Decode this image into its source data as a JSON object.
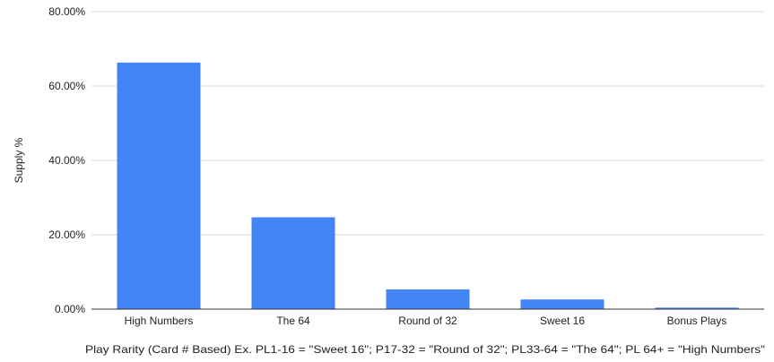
{
  "chart_data": {
    "type": "bar",
    "categories": [
      "High Numbers",
      "The 64",
      "Round of 32",
      "Sweet 16",
      "Bonus Plays"
    ],
    "values": [
      66.3,
      24.7,
      5.3,
      2.6,
      0.4
    ],
    "value_unit": "%",
    "title": "",
    "xlabel": "Play Rarity (Card # Based) Ex. PL1-16 = \"Sweet 16\"; P17-32 = \"Round of 32\"; PL33-64 = \"The 64\"; PL 64+ = \"High Numbers\"",
    "ylabel": "Supply %",
    "ylim": [
      0,
      80
    ],
    "yticks": [
      0,
      20,
      40,
      60,
      80
    ],
    "ytick_labels": [
      "0.00%",
      "20.00%",
      "40.00%",
      "60.00%",
      "80.00%"
    ],
    "grid": true,
    "legend": "none",
    "bar_color": "#4285f4"
  }
}
